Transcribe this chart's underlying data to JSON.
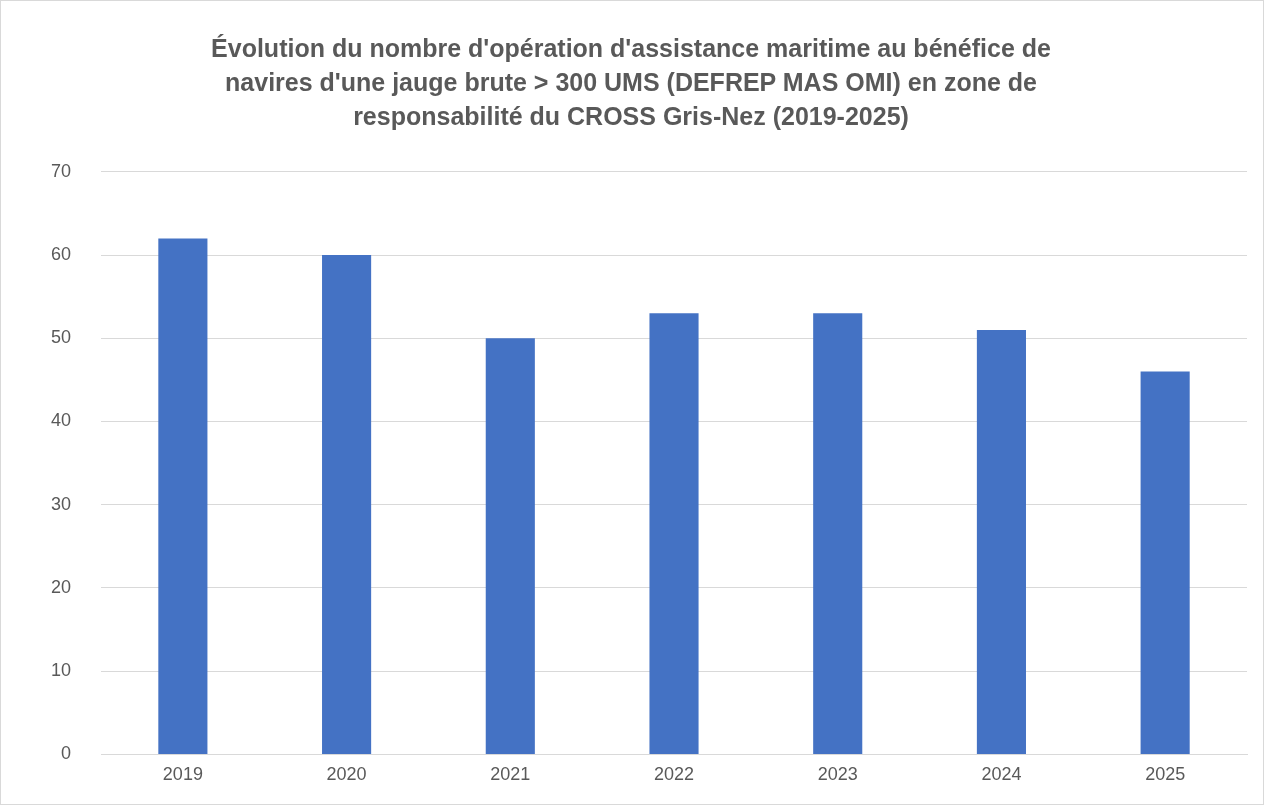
{
  "chart_data": {
    "type": "bar",
    "title": "Évolution du nombre d'opération d'assistance maritime au bénéfice de navires d'une jauge brute > 300 UMS (DEFREP MAS OMI) en zone de responsabilité du CROSS Gris-Nez (2019-2025)",
    "categories": [
      "2019",
      "2020",
      "2021",
      "2022",
      "2023",
      "2024",
      "2025"
    ],
    "values": [
      62,
      60,
      50,
      53,
      53,
      51,
      46
    ],
    "color": "#4472c4",
    "ylim": [
      0,
      70
    ],
    "yticks": [
      0,
      10,
      20,
      30,
      40,
      50,
      60,
      70
    ],
    "grid": "y"
  }
}
